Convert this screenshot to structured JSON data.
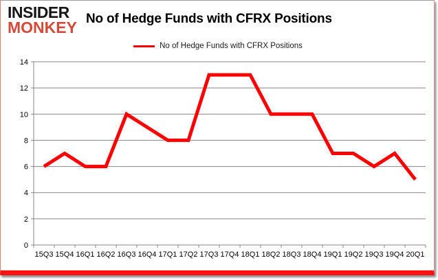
{
  "logo": {
    "line1": "INSIDER",
    "line2": "MONKEY"
  },
  "header": {
    "title": "No of Hedge Funds with CFRX Positions"
  },
  "legend": {
    "label": "No of Hedge Funds with CFRX Positions"
  },
  "colors": {
    "logo_black": "#161616",
    "logo_red": "#d14a3a",
    "line_red": "#ff0000",
    "grid_gray": "#848484",
    "text_black": "#000000",
    "bottom_bar_red": "#fe1111"
  },
  "chart_data": {
    "type": "line",
    "title": "No of Hedge Funds with CFRX Positions",
    "series": [
      {
        "name": "No of Hedge Funds with CFRX Positions",
        "values": [
          6,
          7,
          6,
          6,
          10,
          9,
          8,
          8,
          13,
          13,
          13,
          10,
          10,
          10,
          7,
          7,
          6,
          7,
          5
        ]
      }
    ],
    "categories": [
      "15Q3",
      "15Q4",
      "16Q1",
      "16Q2",
      "16Q3",
      "16Q4",
      "17Q1",
      "17Q2",
      "17Q3",
      "17Q4",
      "18Q1",
      "18Q2",
      "18Q3",
      "18Q4",
      "19Q1",
      "19Q2",
      "19Q3",
      "19Q4",
      "20Q1"
    ],
    "xlabel": "",
    "ylabel": "",
    "ylim": [
      0,
      14
    ],
    "ytick_step": 2,
    "grid": "horizontal",
    "legend_position": "top-center",
    "line_color": "#ff0000",
    "line_width": 5,
    "grid_color": "#848484"
  }
}
